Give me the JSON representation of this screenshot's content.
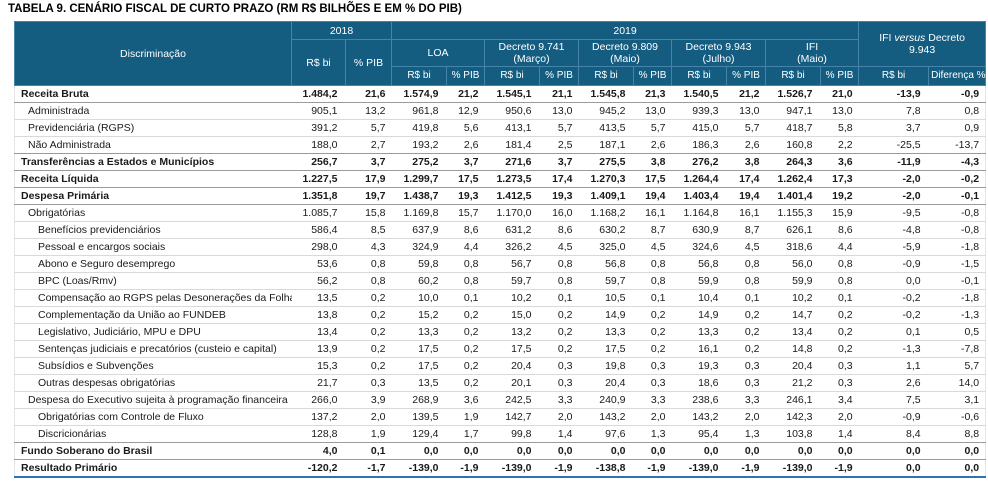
{
  "title": "TABELA 9. CENÁRIO FISCAL DE CURTO PRAZO (RM R$ BILHÕES E EM % DO PIB)",
  "colors": {
    "header_bg": "#155C81",
    "header_border": "#4683A8",
    "row_line": "#D9D9D9",
    "section_line": "#9B9B9B",
    "bottom_line": "#2E74B5",
    "text": "#1A1A1A"
  },
  "table": {
    "header": {
      "discriminacao": "Discriminação",
      "col_2018": "2018",
      "col_2019": "2019",
      "rs_bi": "R$ bi",
      "pct_pib": "% PIB",
      "diferenca": "Diferença %",
      "versus": {
        "word1": "IFI",
        "word2": "versus",
        "word3": "Decreto",
        "line2": "9.943"
      },
      "groups_2019": [
        {
          "line1": "LOA",
          "line2": ""
        },
        {
          "line1": "Decreto 9.741",
          "line2": "(Março)"
        },
        {
          "line1": "Decreto 9.809",
          "line2": "(Maio)"
        },
        {
          "line1": "Decreto 9.943",
          "line2": "(Julho)"
        },
        {
          "line1": "IFI",
          "line2": "(Maio)"
        }
      ]
    },
    "rows": [
      {
        "label": "Receita Bruta",
        "bold": true,
        "indent": 0,
        "values": [
          "1.484,2",
          "21,6",
          "1.574,9",
          "21,2",
          "1.545,1",
          "21,1",
          "1.545,8",
          "21,3",
          "1.540,5",
          "21,2",
          "1.526,7",
          "21,0",
          "-13,9",
          "-0,9"
        ]
      },
      {
        "label": "Administrada",
        "bold": false,
        "indent": 1,
        "values": [
          "905,1",
          "13,2",
          "961,8",
          "12,9",
          "950,6",
          "13,0",
          "945,2",
          "13,0",
          "939,3",
          "13,0",
          "947,1",
          "13,0",
          "7,8",
          "0,8"
        ]
      },
      {
        "label": "Previdenciária (RGPS)",
        "bold": false,
        "indent": 1,
        "values": [
          "391,2",
          "5,7",
          "419,8",
          "5,6",
          "413,1",
          "5,7",
          "413,5",
          "5,7",
          "415,0",
          "5,7",
          "418,7",
          "5,8",
          "3,7",
          "0,9"
        ]
      },
      {
        "label": "Não Administrada",
        "bold": false,
        "indent": 1,
        "values": [
          "188,0",
          "2,7",
          "193,2",
          "2,6",
          "181,4",
          "2,5",
          "187,1",
          "2,6",
          "186,3",
          "2,6",
          "160,8",
          "2,2",
          "-25,5",
          "-13,7"
        ]
      },
      {
        "label": "Transferências a Estados e Municípios",
        "bold": true,
        "indent": 0,
        "values": [
          "256,7",
          "3,7",
          "275,2",
          "3,7",
          "271,6",
          "3,7",
          "275,5",
          "3,8",
          "276,2",
          "3,8",
          "264,3",
          "3,6",
          "-11,9",
          "-4,3"
        ]
      },
      {
        "label": "Receita Líquida",
        "bold": true,
        "indent": 0,
        "values": [
          "1.227,5",
          "17,9",
          "1.299,7",
          "17,5",
          "1.273,5",
          "17,4",
          "1.270,3",
          "17,5",
          "1.264,4",
          "17,4",
          "1.262,4",
          "17,3",
          "-2,0",
          "-0,2"
        ]
      },
      {
        "label": "Despesa Primária",
        "bold": true,
        "indent": 0,
        "values": [
          "1.351,8",
          "19,7",
          "1.438,7",
          "19,3",
          "1.412,5",
          "19,3",
          "1.409,1",
          "19,4",
          "1.403,4",
          "19,4",
          "1.401,4",
          "19,2",
          "-2,0",
          "-0,1"
        ]
      },
      {
        "label": "Obrigatórias",
        "bold": false,
        "indent": 1,
        "values": [
          "1.085,7",
          "15,8",
          "1.169,8",
          "15,7",
          "1.170,0",
          "16,0",
          "1.168,2",
          "16,1",
          "1.164,8",
          "16,1",
          "1.155,3",
          "15,9",
          "-9,5",
          "-0,8"
        ]
      },
      {
        "label": "Benefícios previdenciários",
        "bold": false,
        "indent": 2,
        "values": [
          "586,4",
          "8,5",
          "637,9",
          "8,6",
          "631,2",
          "8,6",
          "630,2",
          "8,7",
          "630,9",
          "8,7",
          "626,1",
          "8,6",
          "-4,8",
          "-0,8"
        ]
      },
      {
        "label": "Pessoal e encargos sociais",
        "bold": false,
        "indent": 2,
        "values": [
          "298,0",
          "4,3",
          "324,9",
          "4,4",
          "326,2",
          "4,5",
          "325,0",
          "4,5",
          "324,6",
          "4,5",
          "318,6",
          "4,4",
          "-5,9",
          "-1,8"
        ]
      },
      {
        "label": "Abono e Seguro desemprego",
        "bold": false,
        "indent": 2,
        "values": [
          "53,6",
          "0,8",
          "59,8",
          "0,8",
          "56,7",
          "0,8",
          "56,8",
          "0,8",
          "56,8",
          "0,8",
          "56,0",
          "0,8",
          "-0,9",
          "-1,5"
        ]
      },
      {
        "label": "BPC (Loas/Rmv)",
        "bold": false,
        "indent": 2,
        "values": [
          "56,2",
          "0,8",
          "60,2",
          "0,8",
          "59,7",
          "0,8",
          "59,7",
          "0,8",
          "59,9",
          "0,8",
          "59,9",
          "0,8",
          "0,0",
          "-0,1"
        ]
      },
      {
        "label": "Compensação ao RGPS pelas Desonerações da Folha",
        "bold": false,
        "indent": 2,
        "values": [
          "13,5",
          "0,2",
          "10,0",
          "0,1",
          "10,2",
          "0,1",
          "10,5",
          "0,1",
          "10,4",
          "0,1",
          "10,2",
          "0,1",
          "-0,2",
          "-1,8"
        ]
      },
      {
        "label": "Complementação da União ao FUNDEB",
        "bold": false,
        "indent": 2,
        "values": [
          "13,8",
          "0,2",
          "15,2",
          "0,2",
          "15,0",
          "0,2",
          "14,9",
          "0,2",
          "14,9",
          "0,2",
          "14,7",
          "0,2",
          "-0,2",
          "-1,3"
        ]
      },
      {
        "label": "Legislativo, Judiciário, MPU e DPU",
        "bold": false,
        "indent": 2,
        "values": [
          "13,4",
          "0,2",
          "13,3",
          "0,2",
          "13,2",
          "0,2",
          "13,3",
          "0,2",
          "13,3",
          "0,2",
          "13,4",
          "0,2",
          "0,1",
          "0,5"
        ]
      },
      {
        "label": "Sentenças judiciais e precatórios (custeio e capital)",
        "bold": false,
        "indent": 2,
        "values": [
          "13,9",
          "0,2",
          "17,5",
          "0,2",
          "17,5",
          "0,2",
          "17,5",
          "0,2",
          "16,1",
          "0,2",
          "14,8",
          "0,2",
          "-1,3",
          "-7,8"
        ]
      },
      {
        "label": "Subsídios e Subvenções",
        "bold": false,
        "indent": 2,
        "values": [
          "15,3",
          "0,2",
          "17,5",
          "0,2",
          "20,4",
          "0,3",
          "19,8",
          "0,3",
          "19,3",
          "0,3",
          "20,4",
          "0,3",
          "1,1",
          "5,7"
        ]
      },
      {
        "label": "Outras despesas obrigatórias",
        "bold": false,
        "indent": 2,
        "values": [
          "21,7",
          "0,3",
          "13,5",
          "0,2",
          "20,1",
          "0,3",
          "20,4",
          "0,3",
          "18,6",
          "0,3",
          "21,2",
          "0,3",
          "2,6",
          "14,0"
        ]
      },
      {
        "label": "Despesa do Executivo sujeita à programação financeira",
        "bold": false,
        "indent": 1,
        "values": [
          "266,0",
          "3,9",
          "268,9",
          "3,6",
          "242,5",
          "3,3",
          "240,9",
          "3,3",
          "238,6",
          "3,3",
          "246,1",
          "3,4",
          "7,5",
          "3,1"
        ]
      },
      {
        "label": "Obrigatórias com Controle de Fluxo",
        "bold": false,
        "indent": 2,
        "values": [
          "137,2",
          "2,0",
          "139,5",
          "1,9",
          "142,7",
          "2,0",
          "143,2",
          "2,0",
          "143,2",
          "2,0",
          "142,3",
          "2,0",
          "-0,9",
          "-0,6"
        ]
      },
      {
        "label": "Discricionárias",
        "bold": false,
        "indent": 2,
        "values": [
          "128,8",
          "1,9",
          "129,4",
          "1,7",
          "99,8",
          "1,4",
          "97,6",
          "1,3",
          "95,4",
          "1,3",
          "103,8",
          "1,4",
          "8,4",
          "8,8"
        ]
      },
      {
        "label": "Fundo Soberano do Brasil",
        "bold": true,
        "indent": 0,
        "values": [
          "4,0",
          "0,1",
          "0,0",
          "0,0",
          "0,0",
          "0,0",
          "0,0",
          "0,0",
          "0,0",
          "0,0",
          "0,0",
          "0,0",
          "0,0",
          "0,0"
        ]
      },
      {
        "label": "Resultado Primário",
        "bold": true,
        "indent": 0,
        "values": [
          "-120,2",
          "-1,7",
          "-139,0",
          "-1,9",
          "-139,0",
          "-1,9",
          "-138,8",
          "-1,9",
          "-139,0",
          "-1,9",
          "-139,0",
          "-1,9",
          "0,0",
          "0,0"
        ]
      }
    ]
  }
}
